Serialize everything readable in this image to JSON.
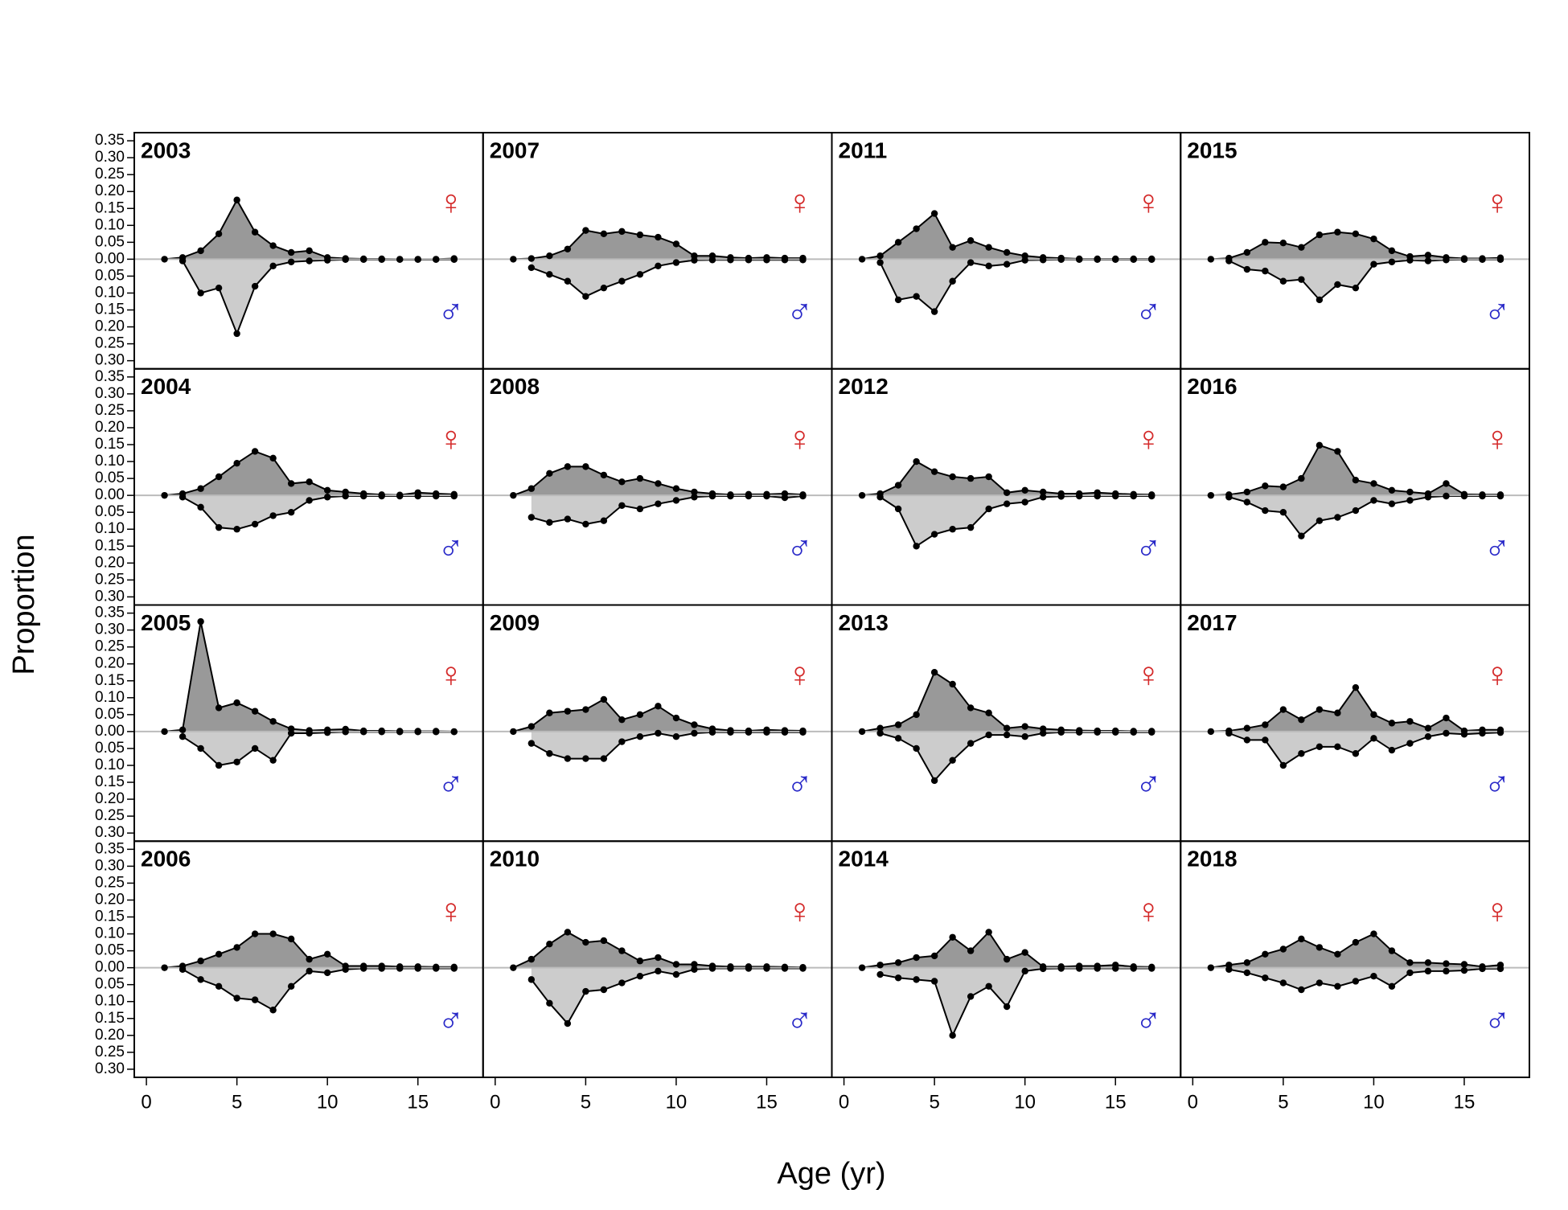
{
  "chart_data": {
    "type": "area",
    "xlabel": "Age (yr)",
    "ylabel": "Proportion",
    "x": [
      1,
      2,
      3,
      4,
      5,
      6,
      7,
      8,
      9,
      10,
      11,
      12,
      13,
      14,
      15,
      16,
      17
    ],
    "xlim": [
      -0.67,
      18.6
    ],
    "ylim": [
      -0.324,
      0.374
    ],
    "xticks": [
      0,
      5,
      10,
      15
    ],
    "yticks": [
      {
        "value": 0.35,
        "label": "0.35"
      },
      {
        "value": 0.3,
        "label": "0.30"
      },
      {
        "value": 0.25,
        "label": "0.25"
      },
      {
        "value": 0.2,
        "label": "0.20"
      },
      {
        "value": 0.15,
        "label": "0.15"
      },
      {
        "value": 0.1,
        "label": "0.10"
      },
      {
        "value": 0.05,
        "label": "0.05"
      },
      {
        "value": 0,
        "label": "0.00"
      },
      {
        "value": -0.05,
        "label": "0.05"
      },
      {
        "value": -0.1,
        "label": "0.10"
      },
      {
        "value": -0.15,
        "label": "0.15"
      },
      {
        "value": -0.2,
        "label": "0.20"
      },
      {
        "value": -0.25,
        "label": "0.25"
      },
      {
        "value": -0.3,
        "label": "0.30"
      }
    ],
    "series": [
      {
        "name": "♀",
        "color": "#999999",
        "symbol_color": "#d42a2a"
      },
      {
        "name": "♂",
        "color": "#cccccc",
        "symbol_color": "#2828c8"
      }
    ],
    "panels": [
      {
        "title": "2003",
        "values": [
          [
            0,
            0.005,
            0.025,
            0.075,
            0.175,
            0.08,
            0.04,
            0.02,
            0.025,
            0.005,
            0.002,
            0.001,
            0.001,
            0,
            0,
            0,
            0.002
          ],
          [
            null,
            -0.005,
            -0.1,
            -0.085,
            -0.22,
            -0.08,
            -0.02,
            -0.008,
            -0.005,
            -0.003,
            -0.001,
            -0.001,
            -0.001,
            -0.001,
            -0.001,
            -0.001,
            -0.001
          ]
        ]
      },
      {
        "title": "2004",
        "values": [
          [
            0,
            0.005,
            0.02,
            0.055,
            0.095,
            0.13,
            0.11,
            0.035,
            0.04,
            0.015,
            0.01,
            0.005,
            0.002,
            0.001,
            0.008,
            0.005,
            0.003
          ],
          [
            null,
            -0.005,
            -0.035,
            -0.095,
            -0.1,
            -0.085,
            -0.06,
            -0.05,
            -0.015,
            -0.005,
            -0.002,
            -0.002,
            -0.002,
            -0.002,
            -0.002,
            -0.002,
            -0.002
          ]
        ]
      },
      {
        "title": "2005",
        "values": [
          [
            0,
            0.005,
            0.325,
            0.07,
            0.085,
            0.06,
            0.03,
            0.008,
            0.003,
            0.005,
            0.007,
            0.002,
            0.002,
            0.001,
            0.001,
            0.001,
            0
          ],
          [
            null,
            -0.015,
            -0.05,
            -0.1,
            -0.09,
            -0.05,
            -0.085,
            -0.005,
            -0.005,
            -0.003,
            -0.001,
            -0.001,
            -0.001,
            -0.001,
            -0.001,
            -0.001,
            -0.001
          ]
        ]
      },
      {
        "title": "2006",
        "values": [
          [
            0,
            0.005,
            0.02,
            0.04,
            0.06,
            0.1,
            0.1,
            0.085,
            0.025,
            0.04,
            0.005,
            0.005,
            0.005,
            0.003,
            0.003,
            0.002,
            0.002
          ],
          [
            null,
            -0.005,
            -0.035,
            -0.055,
            -0.09,
            -0.095,
            -0.125,
            -0.055,
            -0.01,
            -0.015,
            -0.005,
            -0.002,
            -0.002,
            -0.002,
            -0.002,
            -0.002,
            -0.002
          ]
        ]
      },
      {
        "title": "2007",
        "values": [
          [
            0,
            0.002,
            0.01,
            0.03,
            0.085,
            0.075,
            0.082,
            0.072,
            0.065,
            0.045,
            0.01,
            0.01,
            0.005,
            0.003,
            0.005,
            0.003,
            0.003
          ],
          [
            null,
            -0.025,
            -0.045,
            -0.065,
            -0.11,
            -0.085,
            -0.065,
            -0.045,
            -0.02,
            -0.01,
            -0.003,
            -0.002,
            -0.002,
            -0.002,
            -0.002,
            -0.002,
            -0.002
          ]
        ]
      },
      {
        "title": "2008",
        "values": [
          [
            0,
            0.02,
            0.065,
            0.085,
            0.085,
            0.06,
            0.04,
            0.05,
            0.035,
            0.02,
            0.01,
            0.005,
            0.002,
            0.003,
            0.003,
            0.005,
            0.002
          ],
          [
            null,
            -0.065,
            -0.08,
            -0.07,
            -0.085,
            -0.075,
            -0.03,
            -0.04,
            -0.025,
            -0.015,
            -0.005,
            -0.002,
            -0.002,
            -0.002,
            -0.002,
            -0.007,
            -0.002
          ]
        ]
      },
      {
        "title": "2009",
        "values": [
          [
            0,
            0.015,
            0.055,
            0.06,
            0.065,
            0.095,
            0.035,
            0.05,
            0.075,
            0.04,
            0.02,
            0.008,
            0.003,
            0.002,
            0.005,
            0.003,
            0.002
          ],
          [
            null,
            -0.035,
            -0.065,
            -0.08,
            -0.08,
            -0.08,
            -0.03,
            -0.015,
            -0.005,
            -0.015,
            -0.005,
            -0.002,
            -0.002,
            -0.002,
            -0.002,
            -0.002,
            -0.002
          ]
        ]
      },
      {
        "title": "2010",
        "values": [
          [
            0,
            0.025,
            0.07,
            0.105,
            0.075,
            0.08,
            0.05,
            0.02,
            0.03,
            0.01,
            0.01,
            0.005,
            0.003,
            0.003,
            0.003,
            0.002,
            0.001
          ],
          [
            null,
            -0.035,
            -0.105,
            -0.165,
            -0.07,
            -0.065,
            -0.045,
            -0.025,
            -0.01,
            -0.02,
            -0.005,
            -0.002,
            -0.002,
            -0.002,
            -0.002,
            -0.002,
            -0.002
          ]
        ]
      },
      {
        "title": "2011",
        "values": [
          [
            0,
            0.01,
            0.05,
            0.09,
            0.135,
            0.035,
            0.055,
            0.035,
            0.02,
            0.01,
            0.005,
            0.003,
            0.001,
            0.001,
            0.001,
            0.001,
            0.001
          ],
          [
            null,
            -0.01,
            -0.12,
            -0.11,
            -0.155,
            -0.065,
            -0.01,
            -0.02,
            -0.015,
            -0.003,
            -0.002,
            -0.001,
            -0.001,
            -0.001,
            -0.001,
            -0.001,
            -0.001
          ]
        ]
      },
      {
        "title": "2012",
        "values": [
          [
            0,
            0.005,
            0.03,
            0.1,
            0.07,
            0.055,
            0.05,
            0.055,
            0.008,
            0.015,
            0.01,
            0.005,
            0.005,
            0.008,
            0.005,
            0.003,
            0.002
          ],
          [
            null,
            -0.005,
            -0.04,
            -0.15,
            -0.115,
            -0.1,
            -0.095,
            -0.04,
            -0.025,
            -0.02,
            -0.005,
            -0.003,
            -0.002,
            -0.002,
            -0.002,
            -0.002,
            -0.002
          ]
        ]
      },
      {
        "title": "2013",
        "values": [
          [
            0,
            0.01,
            0.02,
            0.05,
            0.175,
            0.14,
            0.07,
            0.055,
            0.01,
            0.015,
            0.008,
            0.005,
            0.003,
            0.002,
            0.002,
            0.001,
            0.001
          ],
          [
            null,
            -0.005,
            -0.02,
            -0.05,
            -0.145,
            -0.085,
            -0.035,
            -0.01,
            -0.01,
            -0.015,
            -0.005,
            -0.002,
            -0.002,
            -0.002,
            -0.002,
            -0.002,
            -0.002
          ]
        ]
      },
      {
        "title": "2014",
        "values": [
          [
            0,
            0.008,
            0.015,
            0.03,
            0.035,
            0.09,
            0.05,
            0.105,
            0.025,
            0.045,
            0.003,
            0.003,
            0.005,
            0.005,
            0.008,
            0.003,
            0.002
          ],
          [
            null,
            -0.02,
            -0.03,
            -0.035,
            -0.04,
            -0.2,
            -0.085,
            -0.055,
            -0.115,
            -0.01,
            -0.003,
            -0.002,
            -0.002,
            -0.002,
            -0.002,
            -0.002,
            -0.002
          ]
        ]
      },
      {
        "title": "2015",
        "values": [
          [
            0,
            0.003,
            0.02,
            0.05,
            0.048,
            0.035,
            0.072,
            0.08,
            0.075,
            0.06,
            0.025,
            0.008,
            0.012,
            0.005,
            0.002,
            0.002,
            0.004
          ],
          [
            null,
            -0.005,
            -0.03,
            -0.035,
            -0.065,
            -0.06,
            -0.12,
            -0.075,
            -0.085,
            -0.015,
            -0.008,
            -0.003,
            -0.005,
            -0.002,
            -0.001,
            -0.001,
            -0.001
          ]
        ]
      },
      {
        "title": "2016",
        "values": [
          [
            0,
            0.002,
            0.01,
            0.028,
            0.025,
            0.05,
            0.148,
            0.13,
            0.045,
            0.035,
            0.015,
            0.01,
            0.005,
            0.035,
            0.003,
            0.002,
            0.002
          ],
          [
            null,
            -0.005,
            -0.02,
            -0.045,
            -0.05,
            -0.12,
            -0.075,
            -0.065,
            -0.045,
            -0.015,
            -0.025,
            -0.015,
            -0.005,
            -0.002,
            -0.002,
            -0.002,
            -0.002
          ]
        ]
      },
      {
        "title": "2017",
        "values": [
          [
            0,
            0.002,
            0.01,
            0.02,
            0.065,
            0.035,
            0.065,
            0.055,
            0.13,
            0.05,
            0.025,
            0.03,
            0.01,
            0.04,
            0.002,
            0.005,
            0.005
          ],
          [
            null,
            -0.005,
            -0.025,
            -0.025,
            -0.1,
            -0.065,
            -0.045,
            -0.045,
            -0.065,
            -0.02,
            -0.055,
            -0.035,
            -0.015,
            -0.005,
            -0.008,
            -0.005,
            -0.003
          ]
        ]
      },
      {
        "title": "2018",
        "values": [
          [
            0,
            0.008,
            0.015,
            0.04,
            0.055,
            0.085,
            0.06,
            0.04,
            0.075,
            0.1,
            0.05,
            0.015,
            0.015,
            0.012,
            0.01,
            0.003,
            0.008
          ],
          [
            null,
            -0.005,
            -0.015,
            -0.03,
            -0.045,
            -0.065,
            -0.045,
            -0.055,
            -0.04,
            -0.025,
            -0.055,
            -0.015,
            -0.01,
            -0.01,
            -0.008,
            -0.003,
            -0.003
          ]
        ]
      }
    ]
  }
}
